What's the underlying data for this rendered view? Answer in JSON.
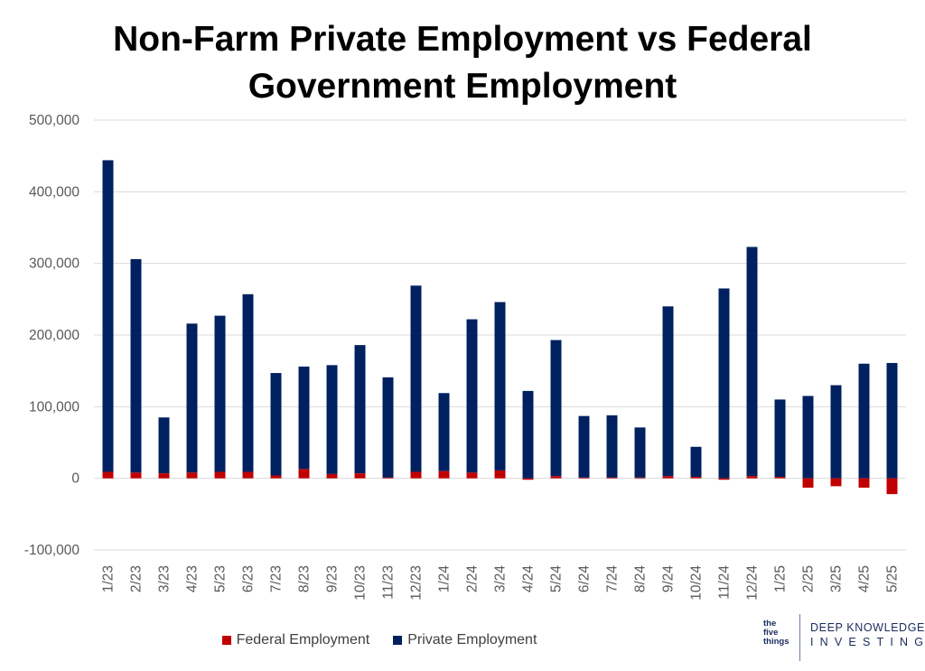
{
  "title_line1": "Non-Farm Private Employment vs Federal",
  "title_line2": "Government Employment",
  "legend": {
    "federal_label": "Federal Employment",
    "private_label": "Private Employment"
  },
  "logos": {
    "tft_text": [
      "the",
      "five",
      "things"
    ],
    "dki_line1": "DEEP KNOWLEDGE",
    "dki_line2": "INVESTING"
  },
  "colors": {
    "federal": "#C00000",
    "private": "#002060",
    "grid": "#D9D9D9",
    "text": "#595959"
  },
  "chart_data": {
    "type": "bar",
    "stacked": true,
    "title": "Non-Farm Private Employment vs Federal Government Employment",
    "xlabel": "",
    "ylabel": "",
    "ylim": [
      -100000,
      500000
    ],
    "yticks": [
      -100000,
      0,
      100000,
      200000,
      300000,
      400000,
      500000
    ],
    "ytick_labels": [
      "-100,000",
      "0",
      "100,000",
      "200,000",
      "300,000",
      "400,000",
      "500,000"
    ],
    "grid": true,
    "legend_position": "bottom",
    "categories": [
      "1/23",
      "2/23",
      "3/23",
      "4/23",
      "5/23",
      "6/23",
      "7/23",
      "8/23",
      "9/23",
      "10/23",
      "11/23",
      "12/23",
      "1/24",
      "2/24",
      "3/24",
      "4/24",
      "5/24",
      "6/24",
      "7/24",
      "8/24",
      "9/24",
      "10/24",
      "11/24",
      "12/24",
      "1/25",
      "2/25",
      "3/25",
      "4/25",
      "5/25"
    ],
    "series": [
      {
        "name": "Federal Employment",
        "color": "#C00000",
        "values": [
          9000,
          8000,
          7000,
          8000,
          9000,
          9000,
          4000,
          13000,
          6000,
          7000,
          1000,
          9000,
          10000,
          8000,
          11000,
          -2000,
          3000,
          1000,
          1000,
          1000,
          3000,
          2000,
          -2000,
          3000,
          2000,
          -13000,
          -11000,
          -13000,
          -22000
        ]
      },
      {
        "name": "Private Employment",
        "color": "#002060",
        "values": [
          435000,
          298000,
          78000,
          208000,
          218000,
          248000,
          143000,
          143000,
          152000,
          179000,
          140000,
          260000,
          109000,
          214000,
          235000,
          122000,
          190000,
          86000,
          87000,
          70000,
          237000,
          42000,
          265000,
          320000,
          108000,
          115000,
          130000,
          160000,
          161000
        ]
      }
    ]
  }
}
